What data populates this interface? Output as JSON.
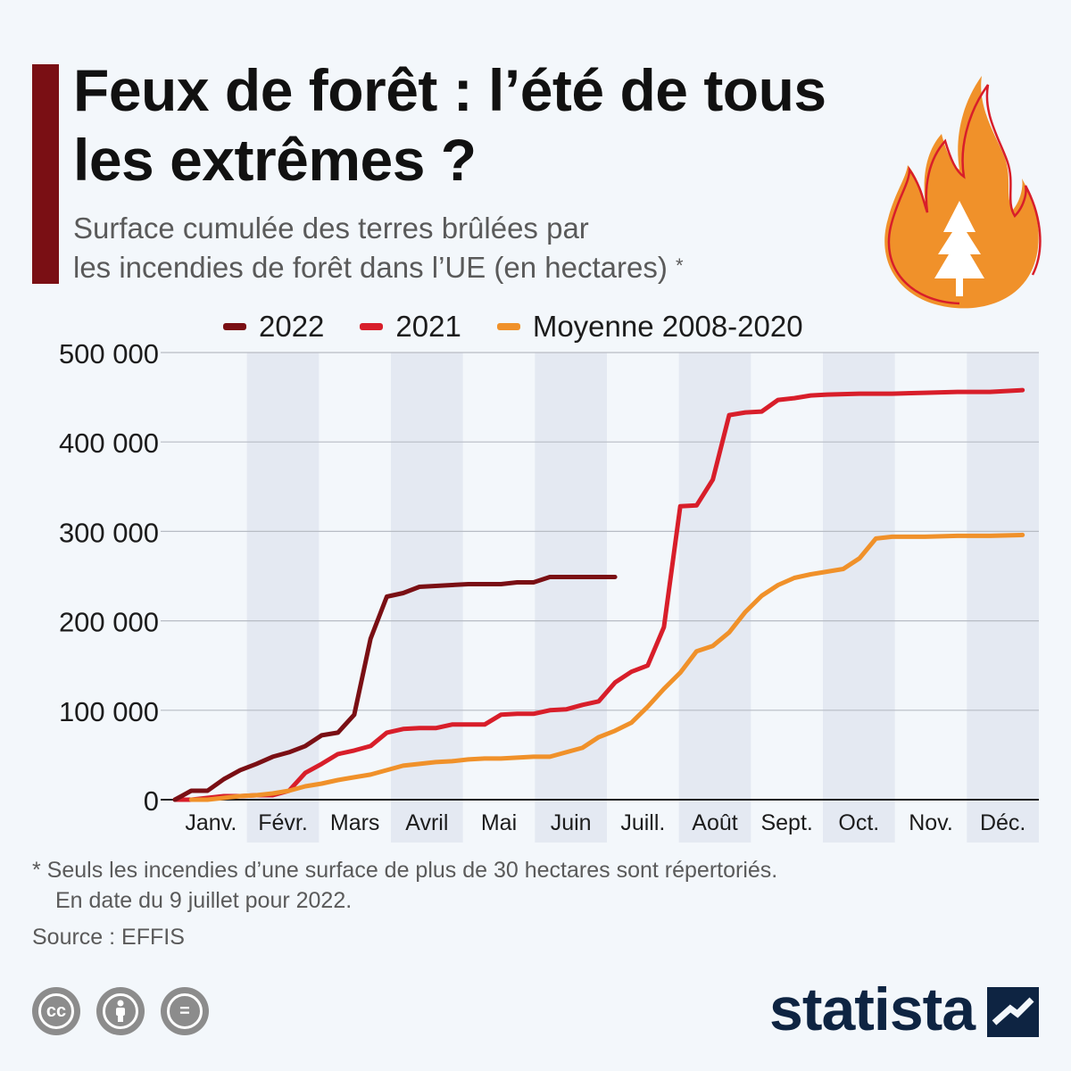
{
  "header": {
    "title": "Feux de forêt : l’été de tous les extrêmes ?",
    "subtitle_line1": "Surface cumulée des terres brûlées par",
    "subtitle_line2": "les incendies de forêt dans l’UE (en hectares)",
    "subtitle_mark": "*"
  },
  "legend": [
    {
      "label": "2022",
      "color": "#7a0f14"
    },
    {
      "label": "2021",
      "color": "#d81e2a"
    },
    {
      "label": "Moyenne 2008-2020",
      "color": "#f0912a"
    }
  ],
  "chart_data": {
    "type": "line",
    "ylim": [
      0,
      500000
    ],
    "yticks": [
      0,
      100000,
      200000,
      300000,
      400000,
      500000
    ],
    "ytick_labels": [
      "0",
      "100 000",
      "200 000",
      "300 000",
      "400 000",
      "500 000"
    ],
    "month_labels": [
      "Janv.",
      "Févr.",
      "Mars",
      "Avril",
      "Mai",
      "Juin",
      "Juill.",
      "Août",
      "Sept.",
      "Oct.",
      "Nov.",
      "Déc."
    ],
    "x_unit": "week of year",
    "xlim": [
      0,
      53
    ],
    "grid": true,
    "legend_position": "top",
    "series": [
      {
        "name": "2022",
        "color": "#7a0f14",
        "points": [
          [
            0,
            0
          ],
          [
            1,
            10000
          ],
          [
            2,
            10000
          ],
          [
            3,
            23000
          ],
          [
            4,
            33000
          ],
          [
            5,
            40000
          ],
          [
            6,
            48000
          ],
          [
            7,
            53000
          ],
          [
            8,
            60000
          ],
          [
            9,
            72000
          ],
          [
            10,
            75000
          ],
          [
            11,
            95000
          ],
          [
            12,
            180000
          ],
          [
            13,
            227000
          ],
          [
            14,
            231000
          ],
          [
            15,
            238000
          ],
          [
            16,
            239000
          ],
          [
            17,
            240000
          ],
          [
            18,
            241000
          ],
          [
            19,
            241000
          ],
          [
            20,
            241000
          ],
          [
            21,
            243000
          ],
          [
            22,
            243000
          ],
          [
            23,
            249000
          ],
          [
            24,
            249000
          ],
          [
            25,
            249000
          ],
          [
            26,
            249000
          ],
          [
            27,
            249000
          ]
        ]
      },
      {
        "name": "2021",
        "color": "#d81e2a",
        "points": [
          [
            0,
            0
          ],
          [
            1,
            0
          ],
          [
            2,
            2000
          ],
          [
            3,
            4000
          ],
          [
            4,
            4000
          ],
          [
            5,
            5000
          ],
          [
            6,
            5000
          ],
          [
            7,
            10000
          ],
          [
            8,
            30000
          ],
          [
            9,
            40000
          ],
          [
            10,
            51000
          ],
          [
            11,
            55000
          ],
          [
            12,
            60000
          ],
          [
            13,
            75000
          ],
          [
            14,
            79000
          ],
          [
            15,
            80000
          ],
          [
            16,
            80000
          ],
          [
            17,
            84000
          ],
          [
            18,
            84000
          ],
          [
            19,
            84000
          ],
          [
            20,
            95000
          ],
          [
            21,
            96000
          ],
          [
            22,
            96000
          ],
          [
            23,
            100000
          ],
          [
            24,
            101000
          ],
          [
            25,
            106000
          ],
          [
            26,
            110000
          ],
          [
            27,
            131000
          ],
          [
            28,
            143000
          ],
          [
            29,
            150000
          ],
          [
            30,
            193000
          ],
          [
            31,
            328000
          ],
          [
            32,
            329000
          ],
          [
            33,
            358000
          ],
          [
            34,
            430000
          ],
          [
            35,
            433000
          ],
          [
            36,
            434000
          ],
          [
            37,
            447000
          ],
          [
            38,
            449000
          ],
          [
            39,
            452000
          ],
          [
            40,
            453000
          ],
          [
            42,
            454000
          ],
          [
            44,
            454000
          ],
          [
            46,
            455000
          ],
          [
            48,
            456000
          ],
          [
            50,
            456000
          ],
          [
            52,
            458000
          ]
        ]
      },
      {
        "name": "Moyenne 2008-2020",
        "color": "#f0912a",
        "points": [
          [
            1,
            0
          ],
          [
            2,
            0
          ],
          [
            3,
            2000
          ],
          [
            4,
            4000
          ],
          [
            5,
            5000
          ],
          [
            6,
            7000
          ],
          [
            7,
            10000
          ],
          [
            8,
            15000
          ],
          [
            9,
            18000
          ],
          [
            10,
            22000
          ],
          [
            11,
            25000
          ],
          [
            12,
            28000
          ],
          [
            13,
            33000
          ],
          [
            14,
            38000
          ],
          [
            15,
            40000
          ],
          [
            16,
            42000
          ],
          [
            17,
            43000
          ],
          [
            18,
            45000
          ],
          [
            19,
            46000
          ],
          [
            20,
            46000
          ],
          [
            21,
            47000
          ],
          [
            22,
            48000
          ],
          [
            23,
            48000
          ],
          [
            24,
            53000
          ],
          [
            25,
            58000
          ],
          [
            26,
            70000
          ],
          [
            27,
            77000
          ],
          [
            28,
            86000
          ],
          [
            29,
            104000
          ],
          [
            30,
            124000
          ],
          [
            31,
            142000
          ],
          [
            32,
            166000
          ],
          [
            33,
            172000
          ],
          [
            34,
            187000
          ],
          [
            35,
            210000
          ],
          [
            36,
            228000
          ],
          [
            37,
            240000
          ],
          [
            38,
            248000
          ],
          [
            39,
            252000
          ],
          [
            40,
            255000
          ],
          [
            41,
            258000
          ],
          [
            42,
            270000
          ],
          [
            43,
            292000
          ],
          [
            44,
            294000
          ],
          [
            46,
            294000
          ],
          [
            48,
            295000
          ],
          [
            50,
            295000
          ],
          [
            52,
            296000
          ]
        ]
      }
    ]
  },
  "footnote": {
    "line1": "* Seuls les incendies d’une surface de plus de 30 hectares sont répertoriés.",
    "line2": "En date du 9 juillet pour 2022."
  },
  "source": "Source : EFFIS",
  "license_icons": [
    {
      "name": "cc-icon",
      "label": "cc"
    },
    {
      "name": "attribution-icon",
      "label": ""
    },
    {
      "name": "no-derivatives-icon",
      "label": "="
    }
  ],
  "brand": {
    "name": "statista",
    "logo_icon": "statista-logo-icon"
  }
}
